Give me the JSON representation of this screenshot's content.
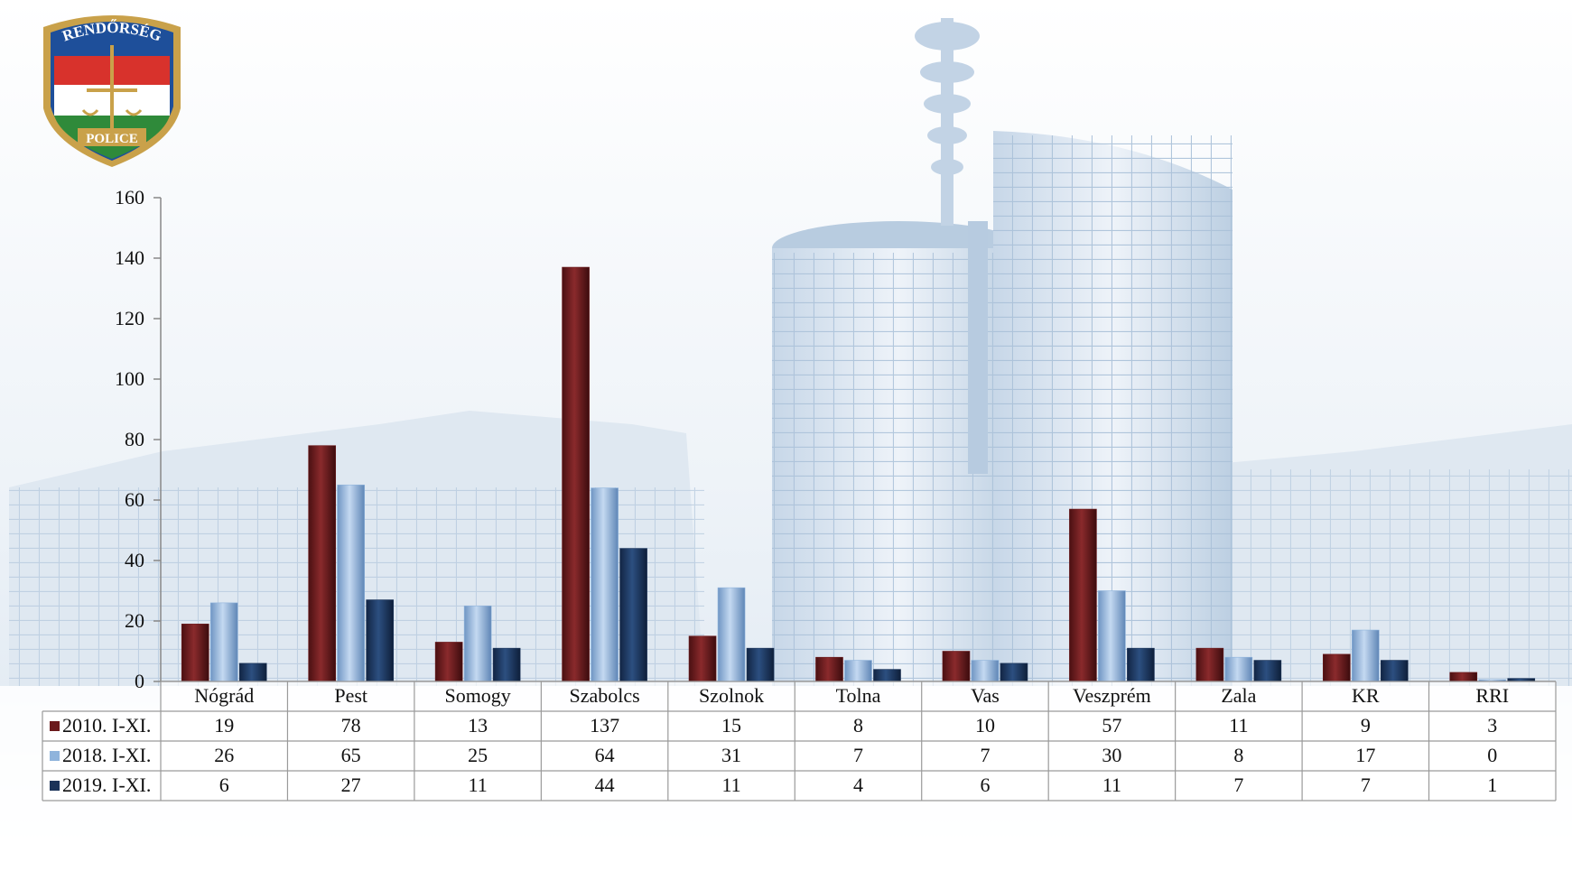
{
  "logo": {
    "top_text": "RENDŐRSÉG",
    "bottom_text": "POLICE"
  },
  "colors": {
    "s2010": "#6b1a1c",
    "s2018": "#8fb4dc",
    "s2019": "#1b3358",
    "grid_line": "#9a9a9a",
    "background_tint": "#c9d8e8"
  },
  "chart_data": {
    "type": "bar",
    "categories": [
      "Nógrád",
      "Pest",
      "Somogy",
      "Szabolcs",
      "Szolnok",
      "Tolna",
      "Vas",
      "Veszprém",
      "Zala",
      "KR",
      "RRI"
    ],
    "series": [
      {
        "name": "2010. I-XI.",
        "values": [
          19,
          78,
          13,
          137,
          15,
          8,
          10,
          57,
          11,
          9,
          3
        ]
      },
      {
        "name": "2018. I-XI.",
        "values": [
          26,
          65,
          25,
          64,
          31,
          7,
          7,
          30,
          8,
          17,
          0
        ]
      },
      {
        "name": "2019. I-XI.",
        "values": [
          6,
          27,
          11,
          44,
          11,
          4,
          6,
          11,
          7,
          7,
          1
        ]
      }
    ],
    "ylim": [
      0,
      160
    ],
    "yticks": [
      0,
      20,
      40,
      60,
      80,
      100,
      120,
      140,
      160
    ],
    "legend": "data-table",
    "grid": false
  }
}
